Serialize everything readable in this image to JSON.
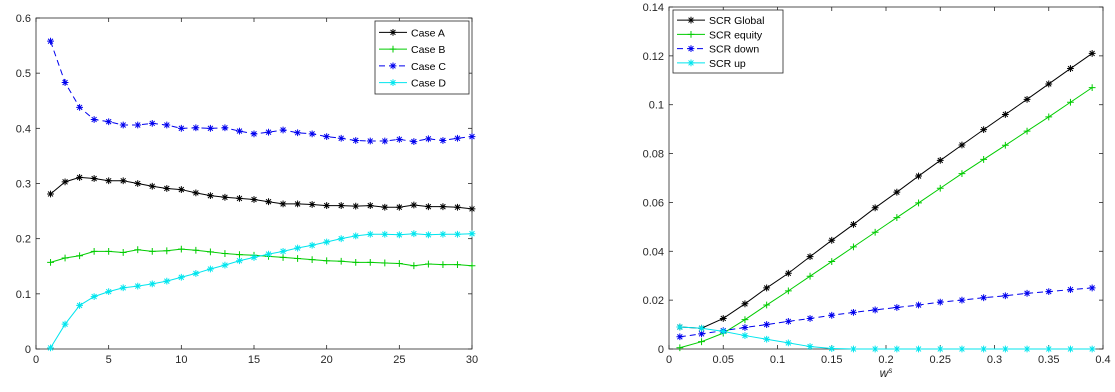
{
  "chart_data": [
    {
      "type": "line",
      "title": "",
      "xlabel": "",
      "ylabel": "",
      "xlim": [
        0,
        30
      ],
      "ylim": [
        0,
        0.6
      ],
      "xticks": [
        0,
        5,
        10,
        15,
        20,
        25,
        30
      ],
      "yticks": [
        0,
        0.1,
        0.2,
        0.3,
        0.4,
        0.5,
        0.6
      ],
      "xtick_labels": [
        "0",
        "5",
        "10",
        "15",
        "20",
        "25",
        "30"
      ],
      "ytick_labels": [
        "0",
        "0.1",
        "0.2",
        "0.3",
        "0.4",
        "0.5",
        "0.6"
      ],
      "grid": false,
      "legend_position": "top-right",
      "series": [
        {
          "name": "Case A",
          "color": "#000000",
          "marker": "asterisk",
          "dash": "solid",
          "x": [
            1,
            2,
            3,
            4,
            5,
            6,
            7,
            8,
            9,
            10,
            11,
            12,
            13,
            14,
            15,
            16,
            17,
            18,
            19,
            20,
            21,
            22,
            23,
            24,
            25,
            26,
            27,
            28,
            29,
            30
          ],
          "y": [
            0.281,
            0.303,
            0.311,
            0.309,
            0.305,
            0.305,
            0.3,
            0.295,
            0.291,
            0.289,
            0.283,
            0.278,
            0.275,
            0.273,
            0.271,
            0.267,
            0.263,
            0.263,
            0.262,
            0.26,
            0.26,
            0.259,
            0.26,
            0.257,
            0.257,
            0.261,
            0.258,
            0.258,
            0.257,
            0.254
          ]
        },
        {
          "name": "Case B",
          "color": "#00cc00",
          "marker": "plus",
          "dash": "solid",
          "x": [
            1,
            2,
            3,
            4,
            5,
            6,
            7,
            8,
            9,
            10,
            11,
            12,
            13,
            14,
            15,
            16,
            17,
            18,
            19,
            20,
            21,
            22,
            23,
            24,
            25,
            26,
            27,
            28,
            29,
            30
          ],
          "y": [
            0.157,
            0.165,
            0.169,
            0.177,
            0.177,
            0.175,
            0.18,
            0.177,
            0.178,
            0.181,
            0.179,
            0.176,
            0.173,
            0.171,
            0.17,
            0.168,
            0.166,
            0.164,
            0.162,
            0.16,
            0.159,
            0.157,
            0.157,
            0.156,
            0.155,
            0.151,
            0.154,
            0.153,
            0.153,
            0.151
          ]
        },
        {
          "name": "Case C",
          "color": "#0000ee",
          "marker": "asterisk",
          "dash": "dashed",
          "x": [
            1,
            2,
            3,
            4,
            5,
            6,
            7,
            8,
            9,
            10,
            11,
            12,
            13,
            14,
            15,
            16,
            17,
            18,
            19,
            20,
            21,
            22,
            23,
            24,
            25,
            26,
            27,
            28,
            29,
            30
          ],
          "y": [
            0.558,
            0.483,
            0.438,
            0.416,
            0.412,
            0.406,
            0.406,
            0.409,
            0.406,
            0.4,
            0.401,
            0.4,
            0.401,
            0.395,
            0.39,
            0.393,
            0.397,
            0.392,
            0.39,
            0.385,
            0.382,
            0.378,
            0.377,
            0.377,
            0.38,
            0.376,
            0.381,
            0.378,
            0.382,
            0.385
          ]
        },
        {
          "name": "Case D",
          "color": "#00e5ee",
          "marker": "asterisk",
          "dash": "solid",
          "x": [
            1,
            2,
            3,
            4,
            5,
            6,
            7,
            8,
            9,
            10,
            11,
            12,
            13,
            14,
            15,
            16,
            17,
            18,
            19,
            20,
            21,
            22,
            23,
            24,
            25,
            26,
            27,
            28,
            29,
            30
          ],
          "y": [
            0.002,
            0.045,
            0.079,
            0.095,
            0.104,
            0.111,
            0.114,
            0.118,
            0.123,
            0.13,
            0.137,
            0.145,
            0.152,
            0.16,
            0.166,
            0.172,
            0.177,
            0.183,
            0.188,
            0.194,
            0.2,
            0.205,
            0.208,
            0.208,
            0.207,
            0.209,
            0.207,
            0.208,
            0.208,
            0.209
          ]
        }
      ]
    },
    {
      "type": "line",
      "title": "",
      "xlabel": "w",
      "xlabel_superscript": "s",
      "ylabel": "",
      "xlim": [
        0,
        0.4
      ],
      "ylim": [
        0,
        0.14
      ],
      "xticks": [
        0,
        0.05,
        0.1,
        0.15,
        0.2,
        0.25,
        0.3,
        0.35,
        0.4
      ],
      "yticks": [
        0,
        0.02,
        0.04,
        0.06,
        0.08,
        0.1,
        0.12,
        0.14
      ],
      "xtick_labels": [
        "0",
        "0.05",
        "0.1",
        "0.15",
        "0.2",
        "0.25",
        "0.3",
        "0.35",
        "0.4"
      ],
      "ytick_labels": [
        "0",
        "0.02",
        "0.04",
        "0.06",
        "0.08",
        "0.1",
        "0.12",
        "0.14"
      ],
      "grid": false,
      "legend_position": "top-left",
      "series": [
        {
          "name": "SCR Global",
          "color": "#000000",
          "marker": "asterisk",
          "dash": "solid",
          "x": [
            0.01,
            0.03,
            0.05,
            0.07,
            0.09,
            0.11,
            0.13,
            0.15,
            0.17,
            0.19,
            0.21,
            0.23,
            0.25,
            0.27,
            0.29,
            0.31,
            0.33,
            0.35,
            0.37,
            0.39
          ],
          "y": [
            0.009,
            0.0085,
            0.0125,
            0.0185,
            0.025,
            0.031,
            0.0378,
            0.0445,
            0.051,
            0.0578,
            0.0642,
            0.0708,
            0.0772,
            0.0835,
            0.0898,
            0.096,
            0.1022,
            0.1085,
            0.1148,
            0.121
          ]
        },
        {
          "name": "SCR equity",
          "color": "#00cc00",
          "marker": "plus",
          "dash": "solid",
          "x": [
            0.01,
            0.03,
            0.05,
            0.07,
            0.09,
            0.11,
            0.13,
            0.15,
            0.17,
            0.19,
            0.21,
            0.23,
            0.25,
            0.27,
            0.29,
            0.31,
            0.33,
            0.35,
            0.37,
            0.39
          ],
          "y": [
            0.0005,
            0.003,
            0.0065,
            0.012,
            0.018,
            0.0238,
            0.0298,
            0.0358,
            0.0418,
            0.0478,
            0.0538,
            0.0598,
            0.0658,
            0.0718,
            0.0776,
            0.0834,
            0.0892,
            0.095,
            0.101,
            0.107
          ]
        },
        {
          "name": "SCR down",
          "color": "#0000ee",
          "marker": "asterisk",
          "dash": "dashed",
          "x": [
            0.01,
            0.03,
            0.05,
            0.07,
            0.09,
            0.11,
            0.13,
            0.15,
            0.17,
            0.19,
            0.21,
            0.23,
            0.25,
            0.27,
            0.29,
            0.31,
            0.33,
            0.35,
            0.37,
            0.39
          ],
          "y": [
            0.005,
            0.0062,
            0.0075,
            0.0088,
            0.01,
            0.0113,
            0.0125,
            0.0138,
            0.015,
            0.016,
            0.017,
            0.018,
            0.0192,
            0.02,
            0.021,
            0.0218,
            0.0228,
            0.0235,
            0.0243,
            0.025
          ]
        },
        {
          "name": "SCR up",
          "color": "#00e5ee",
          "marker": "asterisk",
          "dash": "solid",
          "x": [
            0.01,
            0.03,
            0.05,
            0.07,
            0.09,
            0.11,
            0.13,
            0.15,
            0.17,
            0.19,
            0.21,
            0.23,
            0.25,
            0.27,
            0.29,
            0.31,
            0.33,
            0.35,
            0.37,
            0.39
          ],
          "y": [
            0.009,
            0.0085,
            0.0072,
            0.0055,
            0.004,
            0.0025,
            0.001,
            0.0002,
            0,
            0,
            0,
            0,
            0,
            0,
            0,
            0,
            0,
            0,
            0,
            0
          ]
        }
      ]
    }
  ]
}
